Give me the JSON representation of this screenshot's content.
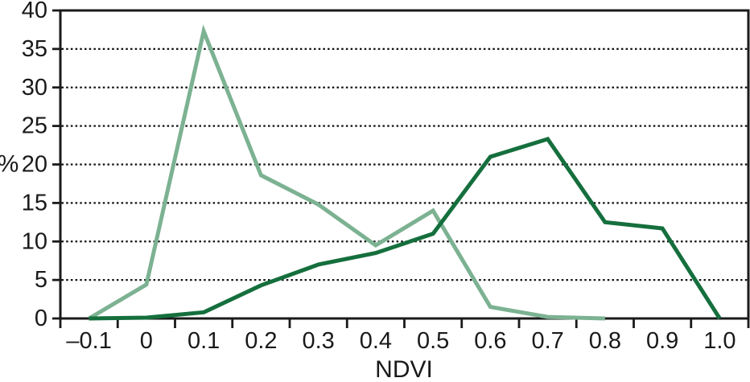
{
  "chart_data": {
    "type": "line",
    "title": "",
    "xlabel": "NDVI",
    "ylabel": "%",
    "xlim": [
      -0.15,
      1.05
    ],
    "ylim": [
      0,
      40
    ],
    "grid": "horizontal-dotted",
    "legend_position": "none",
    "axis_color": "#1a1a1a",
    "grid_color": "#111111",
    "y_ticks": [
      0,
      5,
      10,
      15,
      20,
      25,
      30,
      35,
      40
    ],
    "y_gridlines": [
      5,
      10,
      15,
      20,
      25,
      30,
      35
    ],
    "x_ticks": [
      -0.1,
      0,
      0.1,
      0.2,
      0.3,
      0.4,
      0.5,
      0.6,
      0.7,
      0.8,
      0.9,
      1.0
    ],
    "x_tick_labels": [
      "–0.1",
      "0",
      "0.1",
      "0.2",
      "0.3",
      "0.4",
      "0.5",
      "0.6",
      "0.7",
      "0.8",
      "0.9",
      "1.0"
    ],
    "x_tick_marks": [
      -0.15,
      -0.05,
      0.05,
      0.15,
      0.25,
      0.35,
      0.45,
      0.55,
      0.65,
      0.75,
      0.85,
      0.95,
      1.05
    ],
    "series": [
      {
        "name": "light-green-distribution",
        "color": "#7cb292",
        "x": [
          -0.1,
          0,
          0.1,
          0.2,
          0.3,
          0.4,
          0.5,
          0.6,
          0.7,
          0.8
        ],
        "values": [
          0,
          4.4,
          37.3,
          18.6,
          14.8,
          9.5,
          14.0,
          1.5,
          0.2,
          0
        ]
      },
      {
        "name": "dark-green-distribution",
        "color": "#156f3d",
        "x": [
          -0.1,
          0,
          0.1,
          0.2,
          0.3,
          0.4,
          0.5,
          0.6,
          0.7,
          0.8,
          0.9,
          1.0
        ],
        "values": [
          0,
          0.1,
          0.8,
          4.3,
          7.0,
          8.5,
          11.0,
          21.0,
          23.3,
          12.5,
          11.7,
          0
        ]
      }
    ]
  }
}
